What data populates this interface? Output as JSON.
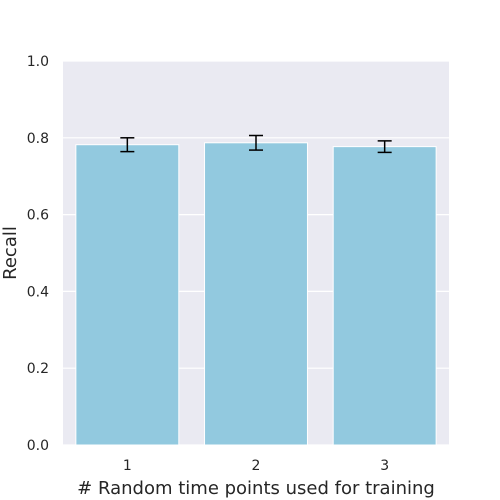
{
  "chart_data": {
    "type": "bar",
    "title": "",
    "xlabel": "# Random time points used for training",
    "ylabel": "Recall",
    "categories": [
      "1",
      "2",
      "3"
    ],
    "values": [
      0.782,
      0.787,
      0.777
    ],
    "error": [
      0.018,
      0.019,
      0.015
    ],
    "ylim": [
      0,
      1.0
    ],
    "yticks": [
      0.0,
      0.2,
      0.4,
      0.6,
      0.8,
      1.0
    ],
    "ytick_labels": [
      "0.0",
      "0.2",
      "0.4",
      "0.6",
      "0.8",
      "1.0"
    ],
    "grid": true,
    "colors": {
      "bar": "#92c9df",
      "plot_background": "#eaeaf2",
      "grid": "#ffffff",
      "error_bar": "#000000",
      "text": "#262626"
    }
  }
}
